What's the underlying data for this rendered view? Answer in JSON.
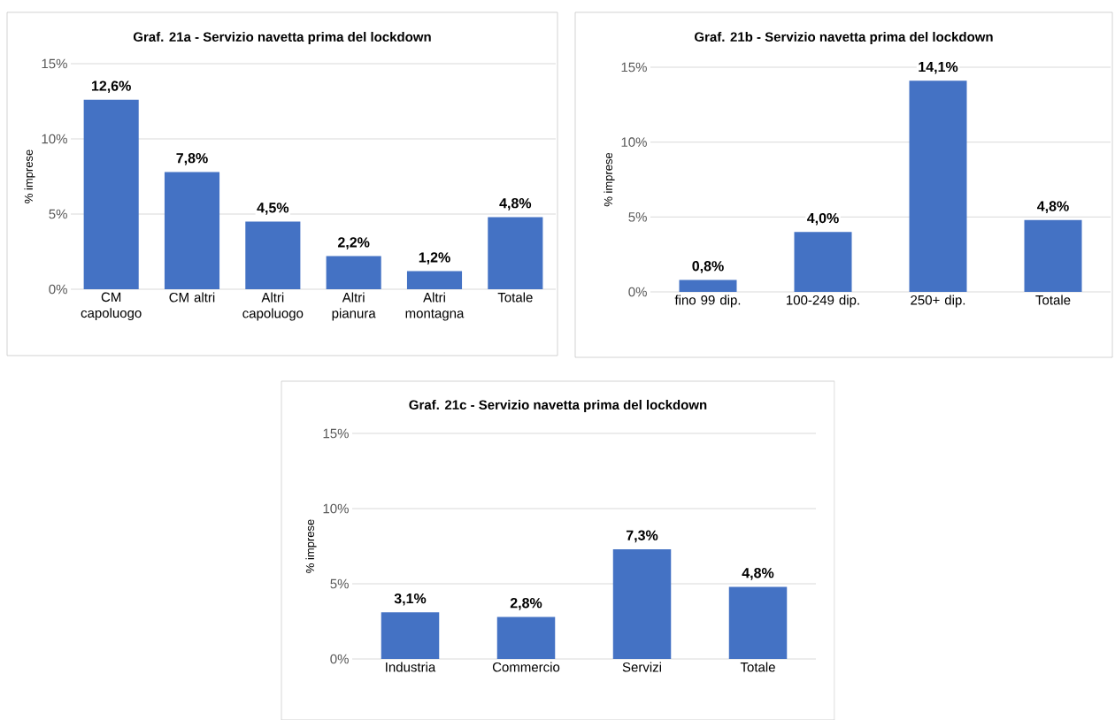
{
  "chart_data": [
    {
      "type": "bar",
      "title": "Graf. 21a - Servizio navetta prima del lockdown",
      "ylabel": "% imprese",
      "categories": [
        "CM capoluogo",
        "CM altri",
        "Altri capoluogo",
        "Altri pianura",
        "Altri montagna",
        "Totale"
      ],
      "values": [
        12.6,
        7.8,
        4.5,
        2.2,
        1.2,
        4.8
      ],
      "value_labels": [
        "12,6%",
        "7,8%",
        "4,5%",
        "2,2%",
        "1,2%",
        "4,8%"
      ],
      "color": "#4472c4",
      "ylim": [
        0,
        15
      ],
      "yticks": [
        {
          "value": 0,
          "label": "0%"
        },
        {
          "value": 5,
          "label": "5%"
        },
        {
          "value": 10,
          "label": "10%"
        },
        {
          "value": 15,
          "label": "15%"
        }
      ],
      "grid": "y"
    },
    {
      "type": "bar",
      "title": "Graf. 21b - Servizio navetta prima del lockdown",
      "ylabel": "% imprese",
      "categories": [
        "fino 99 dip.",
        "100-249 dip.",
        "250+ dip.",
        "Totale"
      ],
      "values": [
        0.8,
        4.0,
        14.1,
        4.8
      ],
      "value_labels": [
        "0,8%",
        "4,0%",
        "14,1%",
        "4,8%"
      ],
      "color": "#4472c4",
      "ylim": [
        0,
        15
      ],
      "yticks": [
        {
          "value": 0,
          "label": "0%"
        },
        {
          "value": 5,
          "label": "5%"
        },
        {
          "value": 10,
          "label": "10%"
        },
        {
          "value": 15,
          "label": "15%"
        }
      ],
      "grid": "y"
    },
    {
      "type": "bar",
      "title": "Graf. 21c - Servizio navetta prima del lockdown",
      "ylabel": "% imprese",
      "categories": [
        "Industria",
        "Commercio",
        "Servizi",
        "Totale"
      ],
      "values": [
        3.1,
        2.8,
        7.3,
        4.8
      ],
      "value_labels": [
        "3,1%",
        "2,8%",
        "7,3%",
        "4,8%"
      ],
      "color": "#4472c4",
      "ylim": [
        0,
        15
      ],
      "yticks": [
        {
          "value": 0,
          "label": "0%"
        },
        {
          "value": 5,
          "label": "5%"
        },
        {
          "value": 10,
          "label": "10%"
        },
        {
          "value": 15,
          "label": "15%"
        }
      ],
      "grid": "y"
    }
  ]
}
